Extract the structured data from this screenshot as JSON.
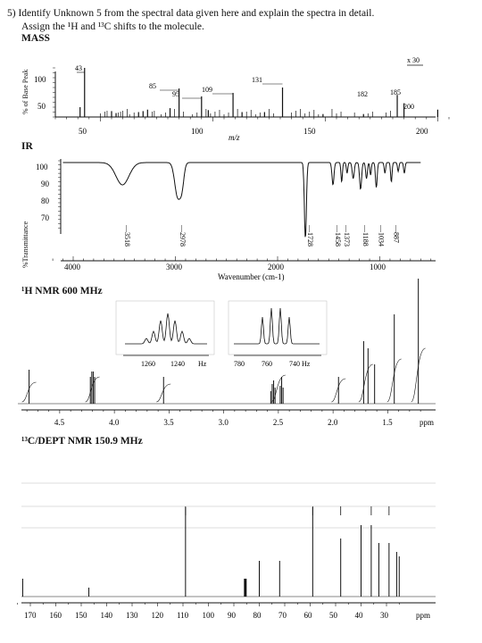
{
  "question": {
    "number": "5)",
    "line1": "Identify Unknown 5 from the spectral data given here and explain the spectra in detail.",
    "line2": "Assign the ¹H and ¹³C shifts to the molecule."
  },
  "mass": {
    "title": "MASS",
    "ylabel": "% of Base Peak",
    "xlabel": "m/z",
    "yticks": [
      "100",
      "50"
    ],
    "xticks": [
      "50",
      "100",
      "150",
      "200"
    ],
    "scale_note": "x 30",
    "peak_labels": [
      "43",
      "85",
      "95",
      "109",
      "131",
      "182",
      "185",
      "200"
    ]
  },
  "ir": {
    "title": "IR",
    "ylabel": "%Transmittance",
    "yticks": [
      "100",
      "90",
      "80",
      "70"
    ],
    "xticks": [
      "4000",
      "3000",
      "2000",
      "1000"
    ],
    "xlabel": "Wavenumber (cm-1)",
    "peak_labels": [
      "3518",
      "2978",
      "1728",
      "1458",
      "1373",
      "1188",
      "1034",
      "887"
    ]
  },
  "hnmr": {
    "title": "¹H NMR 600 MHz",
    "inset1_ticks": [
      "1260",
      "1240",
      "Hz"
    ],
    "inset2_ticks": [
      "780",
      "760",
      "740 Hz"
    ],
    "axis_ticks": [
      "4.5",
      "4.0",
      "3.5",
      "3.0",
      "2.5",
      "2.0",
      "1.5",
      "ppm"
    ]
  },
  "cnmr": {
    "title": "¹³C/DEPT NMR 150.9 MHz",
    "axis_ticks": [
      "170",
      "160",
      "150",
      "140",
      "130",
      "120",
      "110",
      "100",
      "90",
      "80",
      "70",
      "60",
      "50",
      "40",
      "30",
      "ppm"
    ]
  },
  "chart_data": [
    {
      "type": "bar",
      "title": "MASS",
      "xlabel": "m/z",
      "ylabel": "% of Base Peak",
      "xlim": [
        30,
        205
      ],
      "ylim": [
        0,
        100
      ],
      "x": [
        41,
        43,
        55,
        57,
        67,
        69,
        71,
        81,
        85,
        95,
        98,
        109,
        113,
        123,
        131,
        149,
        167,
        182,
        185,
        200
      ],
      "values": [
        20,
        100,
        12,
        8,
        10,
        12,
        15,
        18,
        58,
        42,
        14,
        49,
        10,
        10,
        60,
        6,
        6,
        45,
        28,
        15
      ]
    },
    {
      "type": "line",
      "title": "IR",
      "xlabel": "Wavenumber (cm-1)",
      "ylabel": "%Transmittance",
      "x_reversed": true,
      "labeled_bands": [
        3518,
        2978,
        1728,
        1458,
        1373,
        1188,
        1034,
        887
      ]
    },
    {
      "type": "line",
      "title": "¹H NMR 600 MHz",
      "xlabel": "ppm",
      "x_reversed": true,
      "xlim": [
        1.1,
        4.85
      ],
      "peaks_ppm": [
        4.78,
        4.2,
        3.55,
        2.55,
        2.5,
        2.47,
        1.95,
        1.72,
        1.68,
        1.62,
        1.44,
        1.22
      ]
    },
    {
      "type": "bar",
      "title": "¹³C/DEPT NMR 150.9 MHz",
      "xlabel": "ppm",
      "x_reversed": true,
      "xlim": [
        22,
        175
      ],
      "peaks_ppm": [
        173,
        147,
        109,
        85.5,
        80,
        72,
        59,
        48,
        40,
        36,
        33,
        29,
        26,
        25
      ]
    }
  ]
}
